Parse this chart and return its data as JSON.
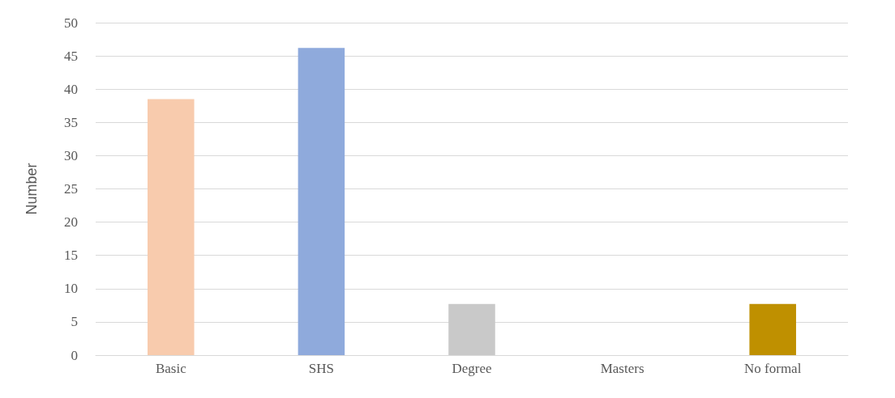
{
  "chart_data": {
    "type": "bar",
    "ylabel": "Number",
    "categories": [
      "Basic",
      "SHS",
      "Degree",
      "Masters",
      "No formal"
    ],
    "values": [
      38.5,
      46.2,
      7.7,
      0,
      7.7
    ],
    "colors": [
      "#f8cbad",
      "#8faadc",
      "#c9c9c9",
      "#a9d18e",
      "#bf9000"
    ],
    "ylim": [
      0,
      50
    ],
    "yticks": [
      0,
      5,
      10,
      15,
      20,
      25,
      30,
      35,
      40,
      45,
      50
    ],
    "grid": "y"
  }
}
